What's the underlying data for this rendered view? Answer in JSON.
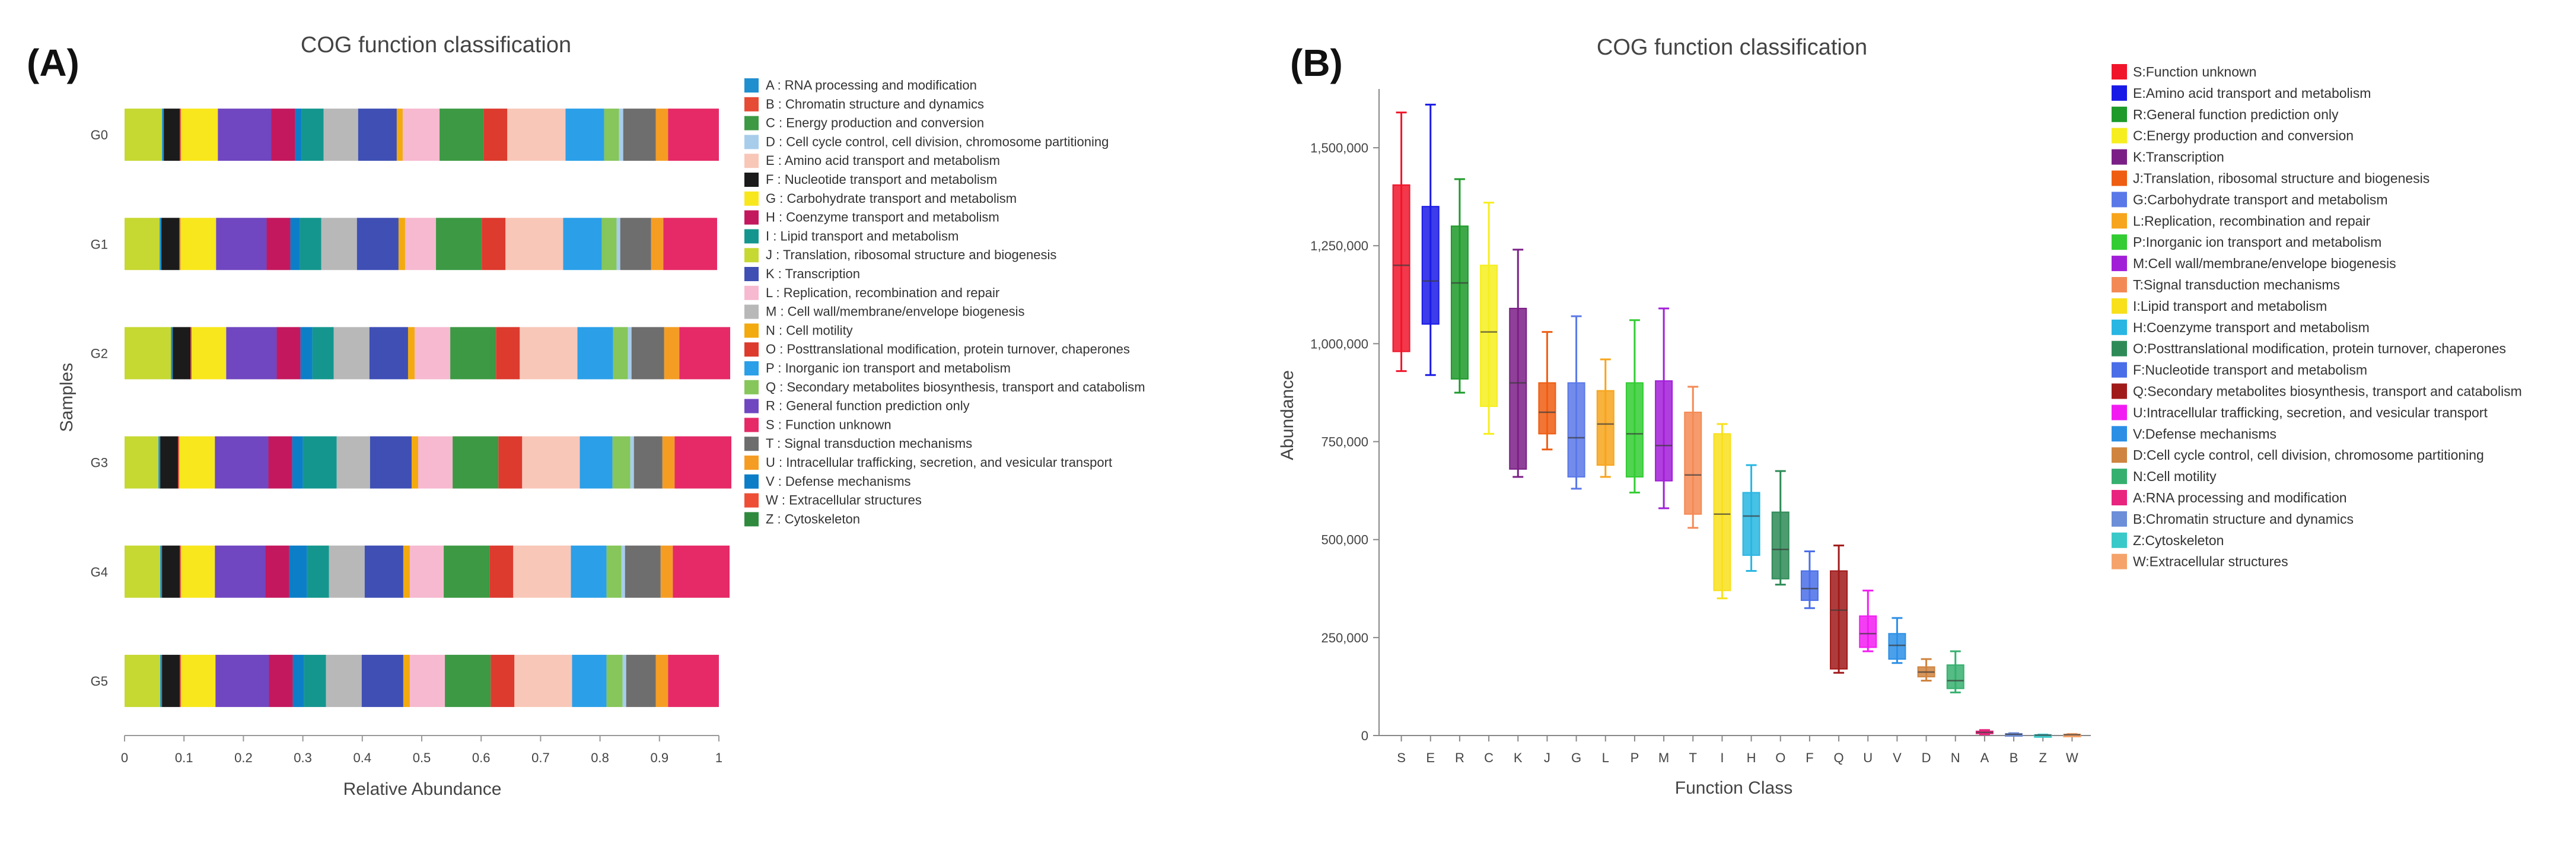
{
  "panels": {
    "a_label": "(A)",
    "b_label": "(B)"
  },
  "chart_data": [
    {
      "type": "bar",
      "stacked": true,
      "orientation": "horizontal",
      "title": "COG function classification",
      "xlabel": "Relative Abundance",
      "ylabel": "Samples",
      "xlim": [
        0,
        1
      ],
      "xticks": [
        "0",
        "0.1",
        "0.2",
        "0.3",
        "0.4",
        "0.5",
        "0.6",
        "0.7",
        "0.8",
        "0.9",
        "1"
      ],
      "categories": [
        "G0",
        "G1",
        "G2",
        "G3",
        "G4",
        "G5"
      ],
      "legend_position": "right",
      "segment_order": [
        "Z",
        "J",
        "A",
        "F",
        "B",
        "G",
        "R",
        "H",
        "V",
        "I",
        "M",
        "K",
        "N",
        "L",
        "C",
        "O",
        "E",
        "P",
        "Q",
        "D",
        "T",
        "U",
        "W",
        "S"
      ],
      "series": [
        {
          "key": "A",
          "name": "A : RNA processing and modification",
          "color": "#1f8fcf",
          "values": [
            0.003,
            0.003,
            0.003,
            0.003,
            0.003,
            0.003
          ]
        },
        {
          "key": "B",
          "name": "B : Chromatin structure and dynamics",
          "color": "#e64b35",
          "values": [
            0.002,
            0.002,
            0.002,
            0.002,
            0.002,
            0.002
          ]
        },
        {
          "key": "C",
          "name": "C : Energy production and conversion",
          "color": "#3d9944",
          "values": [
            0.074,
            0.077,
            0.077,
            0.077,
            0.077,
            0.077
          ]
        },
        {
          "key": "D",
          "name": "D : Cell cycle control, cell division, chromosome partitioning",
          "color": "#a7cdeb",
          "values": [
            0.007,
            0.006,
            0.006,
            0.006,
            0.006,
            0.006
          ]
        },
        {
          "key": "E",
          "name": "E : Amino acid transport and metabolism",
          "color": "#f8c7b8",
          "values": [
            0.098,
            0.097,
            0.097,
            0.097,
            0.097,
            0.097
          ]
        },
        {
          "key": "F",
          "name": "F : Nucleotide transport and metabolism",
          "color": "#1b1b1b",
          "values": [
            0.027,
            0.03,
            0.03,
            0.03,
            0.03,
            0.03
          ]
        },
        {
          "key": "G",
          "name": "G : Carbohydrate transport and metabolism",
          "color": "#f8e71c",
          "values": [
            0.062,
            0.06,
            0.058,
            0.06,
            0.057,
            0.058
          ]
        },
        {
          "key": "H",
          "name": "H : Coenzyme transport and metabolism",
          "color": "#c3185e",
          "values": [
            0.04,
            0.04,
            0.04,
            0.04,
            0.04,
            0.04
          ]
        },
        {
          "key": "I",
          "name": "I : Lipid transport and metabolism",
          "color": "#14968e",
          "values": [
            0.037,
            0.036,
            0.036,
            0.057,
            0.037,
            0.037
          ]
        },
        {
          "key": "J",
          "name": "J : Translation, ribosomal structure and biogenesis",
          "color": "#c6d832",
          "values": [
            0.063,
            0.059,
            0.078,
            0.057,
            0.06,
            0.06
          ]
        },
        {
          "key": "K",
          "name": "K : Transcription",
          "color": "#3f4fb4",
          "values": [
            0.065,
            0.07,
            0.065,
            0.07,
            0.065,
            0.07
          ]
        },
        {
          "key": "L",
          "name": "L : Replication, recombination and repair",
          "color": "#f6b9cf",
          "values": [
            0.062,
            0.052,
            0.06,
            0.058,
            0.057,
            0.059
          ]
        },
        {
          "key": "M",
          "name": "M : Cell wall/membrane/envelope biogenesis",
          "color": "#b8b8b8",
          "values": [
            0.058,
            0.06,
            0.06,
            0.056,
            0.06,
            0.06
          ]
        },
        {
          "key": "N",
          "name": "N : Cell motility",
          "color": "#f2aa0f",
          "values": [
            0.01,
            0.011,
            0.011,
            0.011,
            0.011,
            0.011
          ]
        },
        {
          "key": "O",
          "name": "O : Posttranslational modification, protein turnover, chaperones",
          "color": "#dc3b2e",
          "values": [
            0.04,
            0.04,
            0.04,
            0.04,
            0.04,
            0.04
          ]
        },
        {
          "key": "P",
          "name": "P : Inorganic ion transport and metabolism",
          "color": "#2b9fe8",
          "values": [
            0.065,
            0.065,
            0.06,
            0.055,
            0.06,
            0.058
          ]
        },
        {
          "key": "Q",
          "name": "Q : Secondary metabolites biosynthesis, transport and catabolism",
          "color": "#86c65a",
          "values": [
            0.025,
            0.025,
            0.025,
            0.03,
            0.025,
            0.027
          ]
        },
        {
          "key": "R",
          "name": "R : General function prediction only",
          "color": "#7047c0",
          "values": [
            0.09,
            0.085,
            0.085,
            0.09,
            0.085,
            0.09
          ]
        },
        {
          "key": "S",
          "name": "S : Function unknown",
          "color": "#e52a67",
          "values": [
            0.085,
            0.09,
            0.085,
            0.095,
            0.095,
            0.085
          ]
        },
        {
          "key": "T",
          "name": "T : Signal transduction mechanisms",
          "color": "#6e6e6e",
          "values": [
            0.055,
            0.052,
            0.055,
            0.048,
            0.06,
            0.05
          ]
        },
        {
          "key": "U",
          "name": "U : Intracellular trafficking, secretion, and vesicular transport",
          "color": "#f59d23",
          "values": [
            0.02,
            0.02,
            0.025,
            0.02,
            0.02,
            0.02
          ]
        },
        {
          "key": "V",
          "name": "V : Defense mechanisms",
          "color": "#0c7ec8",
          "values": [
            0.011,
            0.016,
            0.02,
            0.018,
            0.03,
            0.019
          ]
        },
        {
          "key": "W",
          "name": "W : Extracellular structures",
          "color": "#ee4e35",
          "values": [
            0.001,
            0.001,
            0.001,
            0.001,
            0.001,
            0.001
          ]
        },
        {
          "key": "Z",
          "name": "Z : Cytoskeleton",
          "color": "#2f8a3e",
          "values": [
            0.0,
            0.0,
            0.0,
            0.0,
            0.0,
            0.0
          ]
        }
      ]
    },
    {
      "type": "box",
      "title": "COG function classification",
      "xlabel": "Function Class",
      "ylabel": "Abundance",
      "ylim": [
        0,
        1650000
      ],
      "yticks": [
        "0",
        "250,000",
        "500,000",
        "750,000",
        "1,000,000",
        "1,250,000",
        "1,500,000"
      ],
      "ytick_values": [
        0,
        250000,
        500000,
        750000,
        1000000,
        1250000,
        1500000
      ],
      "legend_position": "right",
      "boxes": [
        {
          "key": "S",
          "legend": "S:Function unknown",
          "color": "#f0152a",
          "min": 930000,
          "q1": 980000,
          "median": 1200000,
          "q3": 1405000,
          "max": 1590000
        },
        {
          "key": "E",
          "legend": "E:Amino acid transport and metabolism",
          "color": "#1a1ae6",
          "min": 920000,
          "q1": 1050000,
          "median": 1160000,
          "q3": 1350000,
          "max": 1610000
        },
        {
          "key": "R",
          "legend": "R:General function prediction only",
          "color": "#1d9a2a",
          "min": 875000,
          "q1": 910000,
          "median": 1155000,
          "q3": 1300000,
          "max": 1420000
        },
        {
          "key": "C",
          "legend": "C:Energy production and conversion",
          "color": "#f6ee1e",
          "min": 770000,
          "q1": 840000,
          "median": 1030000,
          "q3": 1200000,
          "max": 1360000
        },
        {
          "key": "K",
          "legend": "K:Transcription",
          "color": "#7b1f86",
          "min": 660000,
          "q1": 680000,
          "median": 900000,
          "q3": 1090000,
          "max": 1240000
        },
        {
          "key": "J",
          "legend": "J:Translation, ribosomal structure and biogenesis",
          "color": "#ee5d12",
          "min": 730000,
          "q1": 770000,
          "median": 825000,
          "q3": 900000,
          "max": 1030000
        },
        {
          "key": "G",
          "legend": "G:Carbohydrate transport and metabolism",
          "color": "#5a78e8",
          "min": 630000,
          "q1": 660000,
          "median": 760000,
          "q3": 900000,
          "max": 1070000
        },
        {
          "key": "L",
          "legend": "L:Replication, recombination and repair",
          "color": "#f7a51c",
          "min": 660000,
          "q1": 690000,
          "median": 795000,
          "q3": 880000,
          "max": 960000
        },
        {
          "key": "P",
          "legend": "P:Inorganic ion transport and metabolism",
          "color": "#33cc33",
          "min": 620000,
          "q1": 660000,
          "median": 770000,
          "q3": 900000,
          "max": 1060000
        },
        {
          "key": "M",
          "legend": "M:Cell wall/membrane/envelope biogenesis",
          "color": "#a21fd8",
          "min": 580000,
          "q1": 650000,
          "median": 740000,
          "q3": 905000,
          "max": 1090000
        },
        {
          "key": "T",
          "legend": "T:Signal transduction mechanisms",
          "color": "#f38a55",
          "min": 530000,
          "q1": 565000,
          "median": 665000,
          "q3": 825000,
          "max": 890000
        },
        {
          "key": "I",
          "legend": "I:Lipid transport and metabolism",
          "color": "#f8e01b",
          "min": 350000,
          "q1": 370000,
          "median": 565000,
          "q3": 770000,
          "max": 795000
        },
        {
          "key": "H",
          "legend": "H:Coenzyme transport and metabolism",
          "color": "#28b6e2",
          "min": 420000,
          "q1": 460000,
          "median": 560000,
          "q3": 620000,
          "max": 690000
        },
        {
          "key": "O",
          "legend": "O:Posttranslational modification, protein turnover, chaperones",
          "color": "#2e8b57",
          "min": 385000,
          "q1": 400000,
          "median": 475000,
          "q3": 570000,
          "max": 675000
        },
        {
          "key": "F",
          "legend": "F:Nucleotide transport and metabolism",
          "color": "#4a6ee8",
          "min": 325000,
          "q1": 345000,
          "median": 375000,
          "q3": 420000,
          "max": 470000
        },
        {
          "key": "Q",
          "legend": "Q:Secondary metabolites biosynthesis, transport and catabolism",
          "color": "#a11a1a",
          "min": 160000,
          "q1": 170000,
          "median": 320000,
          "q3": 420000,
          "max": 485000
        },
        {
          "key": "U",
          "legend": "U:Intracellular trafficking, secretion, and vesicular transport",
          "color": "#f21cf2",
          "min": 215000,
          "q1": 225000,
          "median": 260000,
          "q3": 305000,
          "max": 370000
        },
        {
          "key": "V",
          "legend": "V:Defense mechanisms",
          "color": "#2c8fe6",
          "min": 185000,
          "q1": 195000,
          "median": 230000,
          "q3": 260000,
          "max": 300000
        },
        {
          "key": "D",
          "legend": "D:Cell cycle control, cell division, chromosome partitioning",
          "color": "#cf8440",
          "min": 140000,
          "q1": 150000,
          "median": 162000,
          "q3": 175000,
          "max": 195000
        },
        {
          "key": "N",
          "legend": "N:Cell motility",
          "color": "#36b06f",
          "min": 110000,
          "q1": 120000,
          "median": 140000,
          "q3": 180000,
          "max": 215000
        },
        {
          "key": "A",
          "legend": "A:RNA processing and modification",
          "color": "#e8247f",
          "min": 3000,
          "q1": 5000,
          "median": 8000,
          "q3": 11000,
          "max": 14000
        },
        {
          "key": "B",
          "legend": "B:Chromatin structure and dynamics",
          "color": "#6d8ed8",
          "min": 1000,
          "q1": 2000,
          "median": 3000,
          "q3": 4500,
          "max": 6000
        },
        {
          "key": "Z",
          "legend": "Z:Cytoskeleton",
          "color": "#3ac9c9",
          "min": 0,
          "q1": 500,
          "median": 1000,
          "q3": 1800,
          "max": 2500
        },
        {
          "key": "W",
          "legend": "W:Extracellular structures",
          "color": "#f5a36b",
          "min": 0,
          "q1": 1000,
          "median": 2000,
          "q3": 3000,
          "max": 4000
        }
      ]
    }
  ]
}
